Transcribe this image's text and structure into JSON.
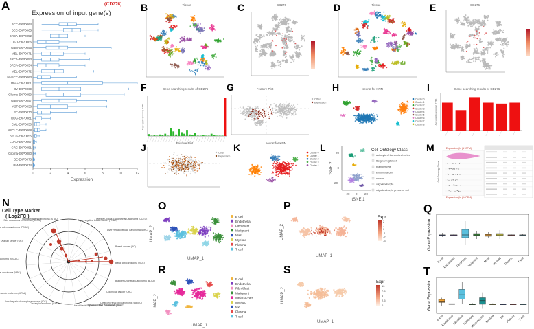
{
  "panels": {
    "A": "A",
    "B": "B",
    "C": "C",
    "D": "D",
    "E": "E",
    "F": "F",
    "G": "G",
    "H": "H",
    "I": "I",
    "J": "J",
    "K": "K",
    "L": "L",
    "M": "M",
    "N": "N",
    "O": "O",
    "P": "P",
    "Q": "Q",
    "R": "R",
    "S": "S",
    "T": "T"
  },
  "panel_a": {
    "title": "Expression of input gene(s)",
    "gene_tag": "(CD276)",
    "xlabel": "Expression",
    "xticks": [
      "0",
      "2",
      "4",
      "6",
      "8",
      "10",
      "12"
    ],
    "xlim": [
      0,
      12
    ],
    "box_color": "#5a9bd5",
    "categories": [
      "BCC-EXP0064",
      "BCC-EXP0065",
      "BRCA-EXP0052",
      "LUAD-EXP0066",
      "GBM-EXP0056",
      "MEL-EXP0071",
      "BRCA-EXP0053",
      "BRCA-EXP0054",
      "MEL-EXP0072",
      "HNSCC-EXP0063",
      "HGG-EXP0061",
      "OV-EXP0069",
      "Glioma-EXP0059",
      "GBM-EXP0057",
      "AST-EXP0056",
      "PC-EXP0070",
      "DDG-EXP0081",
      "CML-EXP0050",
      "NSCLC-EXP0068",
      "BRCA-EXP0055",
      "LUAD-EXP0067",
      "CRC-EXP0051",
      "Glioma-EXP0080",
      "BE-EXP0073",
      "BM-EXP0074"
    ],
    "boxes": [
      [
        1.0,
        3.0,
        4.0,
        5.0,
        7.5
      ],
      [
        1.0,
        3.5,
        4.5,
        5.5,
        7.5
      ],
      [
        0.5,
        2.0,
        3.0,
        4.0,
        6.0
      ],
      [
        0.0,
        0.5,
        1.5,
        3.0,
        5.0
      ],
      [
        0.0,
        1.5,
        3.0,
        4.0,
        9.0
      ],
      [
        0.0,
        1.0,
        2.0,
        3.5,
        6.0
      ],
      [
        0.0,
        1.0,
        2.0,
        3.0,
        6.5
      ],
      [
        0.0,
        0.5,
        1.5,
        3.0,
        6.0
      ],
      [
        0.0,
        1.0,
        2.5,
        3.5,
        7.0
      ],
      [
        0.0,
        0.5,
        1.0,
        2.0,
        5.0
      ],
      [
        0.0,
        1.0,
        4.0,
        8.0,
        12.0
      ],
      [
        0.0,
        1.0,
        3.0,
        5.5,
        11.0
      ],
      [
        0.0,
        1.5,
        3.5,
        5.5,
        10.5
      ],
      [
        0.0,
        1.0,
        3.0,
        5.0,
        8.5
      ],
      [
        0.0,
        0.5,
        2.0,
        4.0,
        8.5
      ],
      [
        0.0,
        0.5,
        1.0,
        2.0,
        5.0
      ],
      [
        0.0,
        0.3,
        0.6,
        1.0,
        2.0
      ],
      [
        0.0,
        0.2,
        0.4,
        0.8,
        1.5
      ],
      [
        0.0,
        0.2,
        0.5,
        0.8,
        1.5
      ],
      [
        0.0,
        0.1,
        0.2,
        0.4,
        0.8
      ],
      [
        0.0,
        0.05,
        0.1,
        0.2,
        0.4
      ],
      [
        0.0,
        0.05,
        0.1,
        0.15,
        0.3
      ],
      [
        0.0,
        0.05,
        0.1,
        0.15,
        0.3
      ],
      [
        0.0,
        0.02,
        0.05,
        0.1,
        0.2
      ],
      [
        0.0,
        0.02,
        0.05,
        0.1,
        0.2
      ]
    ]
  },
  "tsne_titles": {
    "B": "Tissue",
    "C": "CD276",
    "D": "Tissue",
    "E": "CD276"
  },
  "panel_f": {
    "title": "Gene searching results of CD276",
    "ylabel": "Avg Log2(Expression) (TPM)",
    "values": [
      0.25,
      0.05,
      0.1,
      0.05,
      0.2,
      0.1,
      0.3,
      0.05,
      1.0,
      0.6,
      0.2,
      0.9,
      0.5,
      0.3,
      0.8,
      0.2,
      0.1,
      0.4,
      0.05,
      0.05,
      0.1,
      0.05,
      0.05,
      0.3,
      0.1,
      0.05,
      0.05,
      0.05,
      5.0
    ],
    "bar_color": "#2eb82e",
    "highlight_color": "#ee1111"
  },
  "panel_g": {
    "title": "Feature Plot",
    "legend": [
      "Other",
      "Expression"
    ]
  },
  "panel_h": {
    "title": "seurat for KNN",
    "legend": [
      "Cluster 0",
      "Cluster 1",
      "Cluster 2",
      "Cluster 3",
      "Cluster 4",
      "Cluster 5",
      "Cluster 6",
      "Cluster 7",
      "Cluster 8"
    ]
  },
  "panel_i": {
    "title": "Gene searching results of CD276",
    "ylabel": "Avg Log2(Expression) (TPM)",
    "values": [
      3.0,
      2.2,
      3.6,
      3.0,
      2.9,
      3.0
    ],
    "bar_color": "#ee1111"
  },
  "panel_j": {
    "title": "Feature Plot",
    "legend": [
      "Other",
      "Expression"
    ]
  },
  "panel_k": {
    "title": "seurat for KNN",
    "legend": [
      "Cluster 0",
      "Cluster 1",
      "Cluster 2",
      "Cluster 3",
      "Cluster 4"
    ]
  },
  "panel_l": {
    "xlabel": "tSNE 1",
    "ylabel": "tSNE 2",
    "xticks": [
      "-20",
      "0",
      "20"
    ],
    "yticks": [
      "-20",
      "0",
      "20"
    ],
    "legend_title": "Cell Ontology Class",
    "legend": [
      "astrocyte of the cerebral cortex",
      "Bergmann glial cell",
      "brain pericyte",
      "endothelial cell",
      "neuron",
      "oligodendrocyte",
      "oligodendrocyte precursor cell"
    ],
    "legend_colors": [
      "#e8e8e8",
      "#e8e8e8",
      "#e8e8e8",
      "#e8e8e8",
      "#e8e8e8",
      "#e8e8e8",
      "#e8e8e8"
    ]
  },
  "panel_m": {
    "title_top": "Expression (ln (1+CPM))",
    "title_bottom": "Expression (ln (1+CPM))",
    "ylabel": "Cell Ontology Class"
  },
  "panel_n": {
    "title": "Cell Type Marker",
    "subtitle": "( Log2FC )",
    "labels": [
      "Triple negative breast cancer (TNBC)",
      "Uterine Corpus Endometrial Carcinoma (UCEC)",
      "Liver Hepatocellular Carcinoma (LIHC)",
      "Breast cancer (BC)",
      "Basal cell carcinoma (BCC)",
      "Bladder Urothelial Carcinoma (BLCA)",
      "Colorectal cancer (CRC)",
      "Clear cell renal cell carcinoma (ccRCC)",
      "Hepatocellular carcinoma (HCC)",
      "Head Neck Squamous Cell Carcinoma (HNSC)",
      "Cholangiocarcinoma (CHOL)",
      "Intrahepatic cholangiocarcinoma (ICC)",
      "Mixed phenotype acute leukemia (MPAL)",
      "Nasopharyngeal carcinoma (NPC)",
      "Non small cell lung carcinoma (NSCLC)",
      "Ovarian cancer (OC)",
      "Pancreatic ductal adenocarcinoma (PDAC)",
      "Skin cutaneous melanoma (SKCM)",
      "Stomach adenocarcinoma (STAD)"
    ],
    "dot_color": "#c0392b"
  },
  "umap_common": {
    "xlabel": "UMAP_1",
    "ylabel": "UMAP_2"
  },
  "panel_o": {
    "legend": [
      "B cell",
      "Endothelial",
      "Fibroblast",
      "Malignant",
      "Mast",
      "Myeloid",
      "Plasma",
      "T cell"
    ],
    "colors": [
      "#f0b43c",
      "#7e3fc0",
      "#f28fc0",
      "#3b8f3b",
      "#2e52b8",
      "#d9d24a",
      "#e54a4a",
      "#5bc0de"
    ]
  },
  "panel_p": {
    "legend_title": "Expr",
    "ticks": [
      "2",
      "1",
      "0",
      "-1",
      "-2",
      "-3"
    ]
  },
  "panel_q": {
    "ylabel": "Gene Expression",
    "categories": [
      "B cell",
      "Endothelial",
      "Fibroblast",
      "Malignant",
      "Mast",
      "Myeloid",
      "Plasma",
      "T cell"
    ],
    "boxes": [
      [
        -0.3,
        0,
        0,
        0,
        0.3
      ],
      [
        -0.2,
        0,
        0,
        0,
        0.2
      ],
      [
        -1.5,
        -0.4,
        0,
        0.8,
        2.0
      ],
      [
        -0.6,
        -0.1,
        0,
        0.2,
        0.6
      ],
      [
        -0.5,
        -0.2,
        0,
        0.1,
        0.4
      ],
      [
        -0.6,
        -0.1,
        0,
        0.2,
        0.7
      ],
      [
        -0.2,
        0,
        0,
        0,
        0.2
      ],
      [
        -0.2,
        0,
        0,
        0,
        0.2
      ]
    ],
    "ylim": [
      -3,
      3
    ],
    "colors": [
      "#2e52b8",
      "#7e3fc0",
      "#5bc0de",
      "#3b8f3b",
      "#e5a03c",
      "#d9d24a",
      "#e54a4a",
      "#5bc0de"
    ]
  },
  "panel_r": {
    "legend": [
      "B cell",
      "Endothelial",
      "Fibroblast",
      "Malignant",
      "Melanocytes",
      "Myeloid",
      "NK",
      "Plasma",
      "T cell"
    ],
    "colors": [
      "#f0b43c",
      "#7e3fc0",
      "#f28fc0",
      "#3b8f3b",
      "#e5289a",
      "#d9d24a",
      "#2e52b8",
      "#e54a4a",
      "#5bc0de"
    ]
  },
  "panel_s": {
    "legend_title": "Expr",
    "ticks": [
      "10",
      "7.5",
      "5",
      "2.5",
      "0"
    ]
  },
  "panel_t": {
    "ylabel": "Gene Expression",
    "categories": [
      "B cell",
      "Endothelial",
      "Fibroblast",
      "Malignant",
      "Melanocytes",
      "Myeloid",
      "NK",
      "Plasma",
      "T cell"
    ],
    "boxes": [
      [
        -0.5,
        0.6,
        1.0,
        1.6,
        2.2
      ],
      [
        -0.3,
        0,
        0,
        0.2,
        0.4
      ],
      [
        0.0,
        1.8,
        3.2,
        5.0,
        7.5
      ],
      [
        -0.2,
        0,
        0,
        0,
        0.4
      ],
      [
        -1.5,
        0.0,
        1.2,
        2.2,
        4.0
      ],
      [
        -0.2,
        0,
        0,
        0,
        0.3
      ],
      [
        -0.2,
        0,
        0,
        0,
        0.2
      ],
      [
        -0.2,
        0,
        0,
        0,
        0.3
      ],
      [
        -0.2,
        0,
        0,
        0,
        0.2
      ]
    ],
    "ylim": [
      -3,
      9
    ],
    "colors": [
      "#f0a030",
      "#7e3fc0",
      "#5bc0de",
      "#3b8f3b",
      "#1a8f8f",
      "#d9d24a",
      "#2e52b8",
      "#e54a4a",
      "#5bc0de"
    ]
  }
}
